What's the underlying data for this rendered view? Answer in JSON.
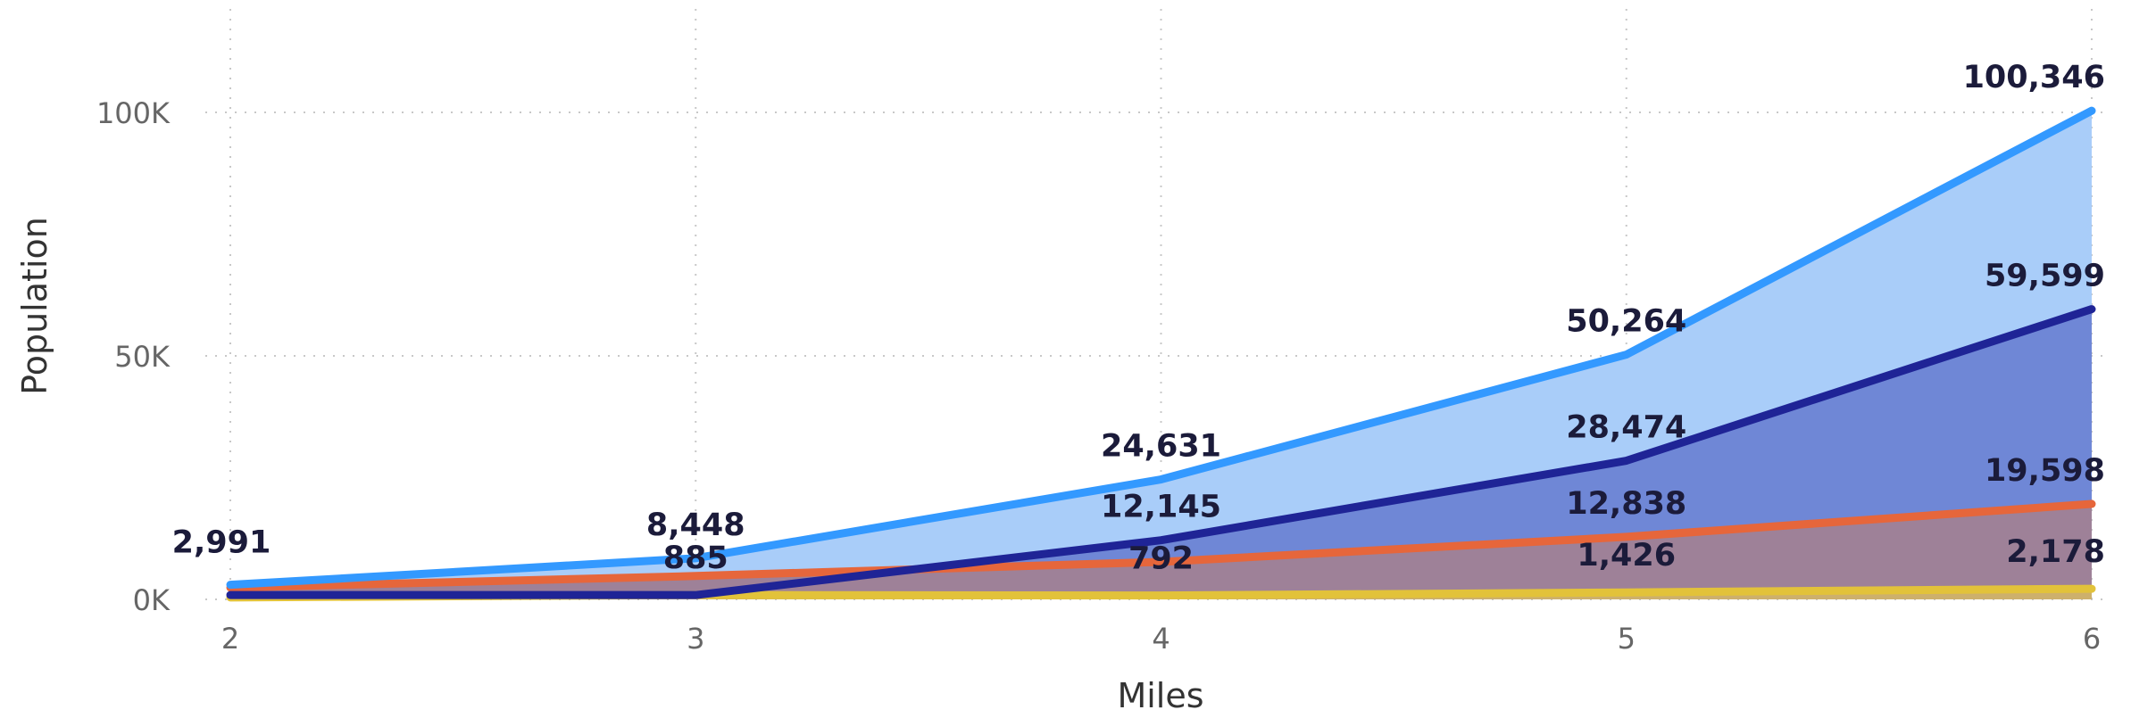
{
  "chart_data": {
    "type": "area",
    "xlabel": "Miles",
    "ylabel": "Population",
    "x": [
      2,
      3,
      4,
      5,
      6
    ],
    "xlim": [
      2,
      6
    ],
    "ylim": [
      0,
      100000
    ],
    "yticks": [
      {
        "value": 0,
        "label": "0K"
      },
      {
        "value": 50000,
        "label": "50K"
      },
      {
        "value": 100000,
        "label": "100K"
      }
    ],
    "xticks": [
      "2",
      "3",
      "4",
      "5",
      "6"
    ],
    "grid": true,
    "legend": "none",
    "series": [
      {
        "values": [
          2991,
          8448,
          24631,
          50264,
          100346
        ],
        "labels": [
          "2,991",
          "8,448",
          "24,631",
          "50,264",
          "100,346"
        ],
        "line_color": "#3399ff",
        "fill_color": "#a9cdf9"
      },
      {
        "values": [
          900,
          885,
          12145,
          28474,
          59599
        ],
        "labels": [
          "",
          "",
          "12,145",
          "28,474",
          "59,599"
        ],
        "line_color": "#1f2496",
        "fill_color": "#6f87d6"
      },
      {
        "values": [
          2400,
          4800,
          7700,
          12838,
          19598
        ],
        "labels": [
          "",
          "",
          "",
          "12,838",
          "19,598"
        ],
        "line_color": "#e6663b",
        "fill_color": "#9e8198"
      },
      {
        "values": [
          400,
          885,
          792,
          1426,
          2178
        ],
        "labels": [
          "",
          "885",
          "792",
          "1,426",
          "2,178"
        ],
        "line_color": "#e2c23a",
        "fill_color": "#cdb06c"
      }
    ]
  }
}
